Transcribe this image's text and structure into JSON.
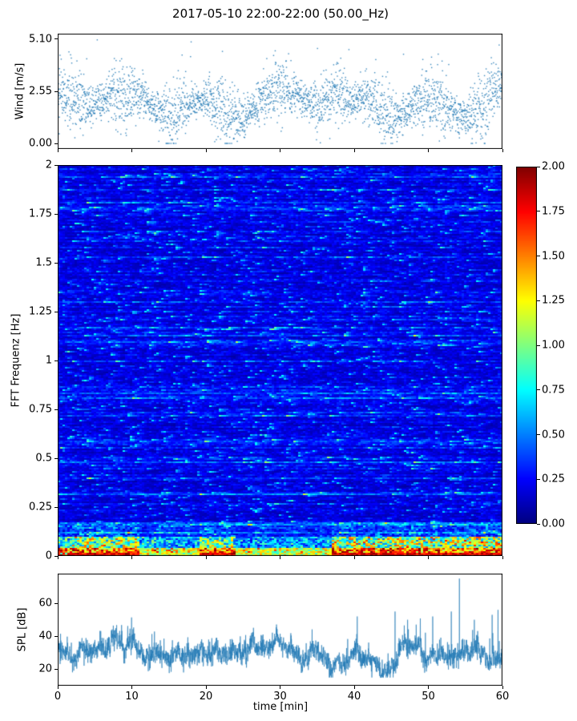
{
  "figure": {
    "title": "2017-05-10 22:00-22:00 (50.00_Hz)",
    "background_color": "#ffffff"
  },
  "chart_data": [
    {
      "id": "wind",
      "type": "scatter",
      "ylabel": "Wind [m/s]",
      "xlim": [
        0,
        60
      ],
      "ylim": [
        -0.26,
        5.36
      ],
      "yticks": [
        0.0,
        2.55,
        5.1
      ],
      "ytick_labels": [
        "0.00",
        "2.55",
        "5.10"
      ],
      "xticks": [
        0,
        10,
        20,
        30,
        40,
        50,
        60
      ],
      "marker_color": "#1f77b4",
      "n_points": 3000,
      "data_summary": {
        "mean_wind_ms": 2.0,
        "typical_range_ms": [
          0.3,
          3.8
        ],
        "max_ms": 5.1,
        "min_ms": 0.05
      }
    },
    {
      "id": "spectrogram",
      "type": "heatmap",
      "ylabel": "FFT Frequenz [Hz]",
      "xlim": [
        0,
        60
      ],
      "ylim": [
        0,
        2
      ],
      "yticks": [
        0,
        0.25,
        0.5,
        0.75,
        1,
        1.25,
        1.5,
        1.75,
        2
      ],
      "ytick_labels": [
        "0",
        "0.25",
        "0.5",
        "0.75",
        "1",
        "1.25",
        "1.5",
        "1.75",
        "2"
      ],
      "xticks": [
        0,
        10,
        20,
        30,
        40,
        50,
        60
      ],
      "colormap": "jet",
      "vmin": 0,
      "vmax": 2,
      "value_summary": {
        "background_level": [
          0.1,
          0.5
        ],
        "speckle_level": [
          0.6,
          1.4
        ],
        "low_frequency_band_below_hz": 0.16,
        "low_frequency_level": [
          0.8,
          2.0
        ],
        "strong_low_freq_time_ranges_min": [
          [
            0,
            11
          ],
          [
            19,
            24
          ],
          [
            37,
            60
          ]
        ]
      }
    },
    {
      "id": "colorbar",
      "type": "colorbar",
      "colormap": "jet",
      "range": [
        0,
        2
      ],
      "ticks": [
        0.0,
        0.25,
        0.5,
        0.75,
        1.0,
        1.25,
        1.5,
        1.75,
        2.0
      ],
      "tick_labels": [
        "0.00",
        "0.25",
        "0.50",
        "0.75",
        "1.00",
        "1.25",
        "1.50",
        "1.75",
        "2.00"
      ]
    },
    {
      "id": "spl",
      "type": "line",
      "ylabel": "SPL [dB]",
      "xlabel": "time [min]",
      "xlim": [
        0,
        60
      ],
      "ylim": [
        10,
        78
      ],
      "yticks": [
        20,
        40,
        60
      ],
      "ytick_labels": [
        "20",
        "40",
        "60"
      ],
      "xticks": [
        0,
        10,
        20,
        30,
        40,
        50,
        60
      ],
      "xtick_labels": [
        "0",
        "10",
        "20",
        "30",
        "40",
        "50",
        "60"
      ],
      "line_color": "#1f77b4",
      "n_points": 2800,
      "data_summary": {
        "mean_db": 33,
        "typical_range_db": [
          25,
          45
        ],
        "max_spike_db": 75,
        "max_spike_time_min": 54,
        "notable_spikes": [
          [
            40.4,
            52
          ],
          [
            45.5,
            55
          ],
          [
            47.2,
            50
          ],
          [
            50.6,
            52
          ],
          [
            53.1,
            55
          ],
          [
            54.2,
            75
          ],
          [
            56.2,
            50
          ],
          [
            58.6,
            53
          ],
          [
            59.4,
            56
          ]
        ]
      }
    }
  ]
}
